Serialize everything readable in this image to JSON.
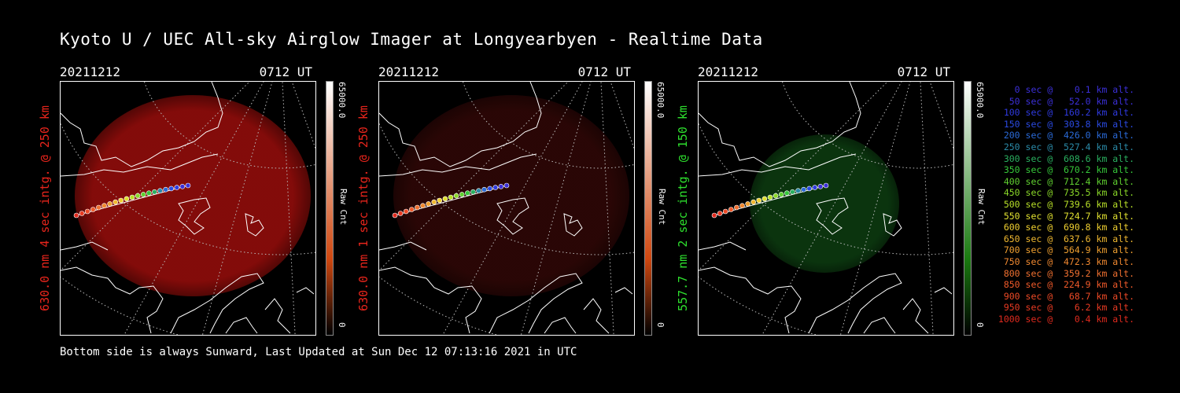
{
  "title": "Kyoto U / UEC All-sky Airglow Imager at Longyearbyen - Realtime Data",
  "footer": "Bottom side is always Sunward, Last Updated at Sun Dec 12 07:13:16 2021 in UTC",
  "panels": [
    {
      "date": "20211212",
      "time": "0712 UT",
      "ylabel": "630.0 nm 4 sec intg. @ 250 km",
      "ylabel_color": "#e8251c",
      "colorbar_max": "65000.0",
      "colorbar_min": "0",
      "colorbar_label": "Raw Cnt",
      "glow_color": "#8a0c0a",
      "glow_intensity": 0.95
    },
    {
      "date": "20211212",
      "time": "0712 UT",
      "ylabel": "630.0 nm 1 sec intg. @ 250 km",
      "ylabel_color": "#e8251c",
      "colorbar_max": "65000.0",
      "colorbar_min": "0",
      "colorbar_label": "Raw Cnt",
      "glow_color": "#2e0706",
      "glow_intensity": 0.9
    },
    {
      "date": "20211212",
      "time": "0712 UT",
      "ylabel": "557.7 nm 2 sec intg. @ 150 km",
      "ylabel_color": "#2ee02e",
      "colorbar_max": "65000.0",
      "colorbar_min": "0",
      "colorbar_label": "Raw Cnt",
      "glow_color": "#0c3a10",
      "glow_intensity": 0.9
    }
  ],
  "legend": [
    {
      "text": "   0 sec @    0.1 km alt.",
      "color": "#3b2fd8"
    },
    {
      "text": "  50 sec @   52.0 km alt.",
      "color": "#3b2fd8"
    },
    {
      "text": " 100 sec @  160.2 km alt.",
      "color": "#2f3ae0"
    },
    {
      "text": " 150 sec @  303.8 km alt.",
      "color": "#2a4ae2"
    },
    {
      "text": " 200 sec @  426.0 km alt.",
      "color": "#2a6ad8"
    },
    {
      "text": " 250 sec @  527.4 km alt.",
      "color": "#2a8aa8"
    },
    {
      "text": " 300 sec @  608.6 km alt.",
      "color": "#2ab060"
    },
    {
      "text": " 350 sec @  670.2 km alt.",
      "color": "#36c83a"
    },
    {
      "text": " 400 sec @  712.4 km alt.",
      "color": "#60d030"
    },
    {
      "text": " 450 sec @  735.5 km alt.",
      "color": "#8ad828"
    },
    {
      "text": " 500 sec @  739.6 km alt.",
      "color": "#b8e028"
    },
    {
      "text": " 550 sec @  724.7 km alt.",
      "color": "#e0e030"
    },
    {
      "text": " 600 sec @  690.8 km alt.",
      "color": "#f0d030"
    },
    {
      "text": " 650 sec @  637.6 km alt.",
      "color": "#f0b830"
    },
    {
      "text": " 700 sec @  564.9 km alt.",
      "color": "#f0a030"
    },
    {
      "text": " 750 sec @  472.3 km alt.",
      "color": "#f08830"
    },
    {
      "text": " 800 sec @  359.2 km alt.",
      "color": "#f07030"
    },
    {
      "text": " 850 sec @  224.9 km alt.",
      "color": "#f05a2a"
    },
    {
      "text": " 900 sec @   68.7 km alt.",
      "color": "#ee4a26"
    },
    {
      "text": " 950 sec @    6.2 km alt.",
      "color": "#e83a22"
    },
    {
      "text": "1000 sec @    0.4 km alt.",
      "color": "#e02a1e"
    }
  ]
}
